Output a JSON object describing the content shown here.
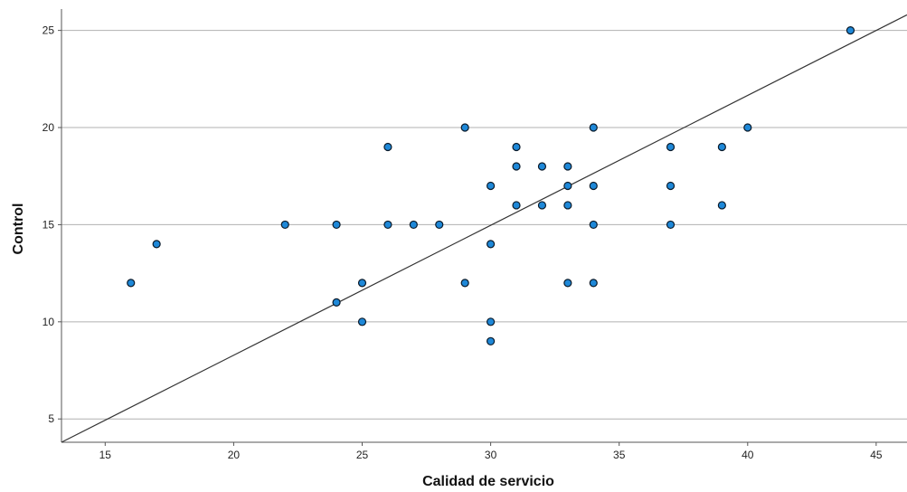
{
  "chart_data": {
    "type": "scatter",
    "title": "",
    "xlabel": "Calidad de servicio",
    "ylabel": "Control",
    "xlim": [
      13.3,
      46.2
    ],
    "ylim": [
      3.8,
      26.1
    ],
    "xticks": [
      15,
      20,
      25,
      30,
      35,
      40,
      45
    ],
    "yticks": [
      5,
      10,
      15,
      20,
      25
    ],
    "grid": {
      "horizontal": true,
      "vertical": false
    },
    "points": [
      {
        "x": 16,
        "y": 12
      },
      {
        "x": 17,
        "y": 14
      },
      {
        "x": 22,
        "y": 15
      },
      {
        "x": 24,
        "y": 15
      },
      {
        "x": 24,
        "y": 11
      },
      {
        "x": 25,
        "y": 12
      },
      {
        "x": 25,
        "y": 10
      },
      {
        "x": 26,
        "y": 19
      },
      {
        "x": 26,
        "y": 15
      },
      {
        "x": 27,
        "y": 15
      },
      {
        "x": 28,
        "y": 15
      },
      {
        "x": 29,
        "y": 20
      },
      {
        "x": 29,
        "y": 12
      },
      {
        "x": 30,
        "y": 17
      },
      {
        "x": 30,
        "y": 14
      },
      {
        "x": 30,
        "y": 10
      },
      {
        "x": 30,
        "y": 9
      },
      {
        "x": 31,
        "y": 19
      },
      {
        "x": 31,
        "y": 18
      },
      {
        "x": 31,
        "y": 16
      },
      {
        "x": 32,
        "y": 18
      },
      {
        "x": 32,
        "y": 16
      },
      {
        "x": 33,
        "y": 18
      },
      {
        "x": 33,
        "y": 17
      },
      {
        "x": 33,
        "y": 16
      },
      {
        "x": 33,
        "y": 12
      },
      {
        "x": 34,
        "y": 20
      },
      {
        "x": 34,
        "y": 17
      },
      {
        "x": 34,
        "y": 15
      },
      {
        "x": 34,
        "y": 12
      },
      {
        "x": 37,
        "y": 19
      },
      {
        "x": 37,
        "y": 17
      },
      {
        "x": 37,
        "y": 15
      },
      {
        "x": 39,
        "y": 19
      },
      {
        "x": 39,
        "y": 16
      },
      {
        "x": 40,
        "y": 20
      },
      {
        "x": 44,
        "y": 25
      }
    ],
    "reference_line": {
      "x": [
        13.3,
        46.2
      ],
      "y": [
        3.8,
        25.8
      ]
    },
    "colors": {
      "point_fill": "#1e88d8",
      "point_stroke": "#0a1a2a",
      "grid": "#b0b0b0",
      "line": "#333333",
      "axis": "#555555"
    }
  }
}
